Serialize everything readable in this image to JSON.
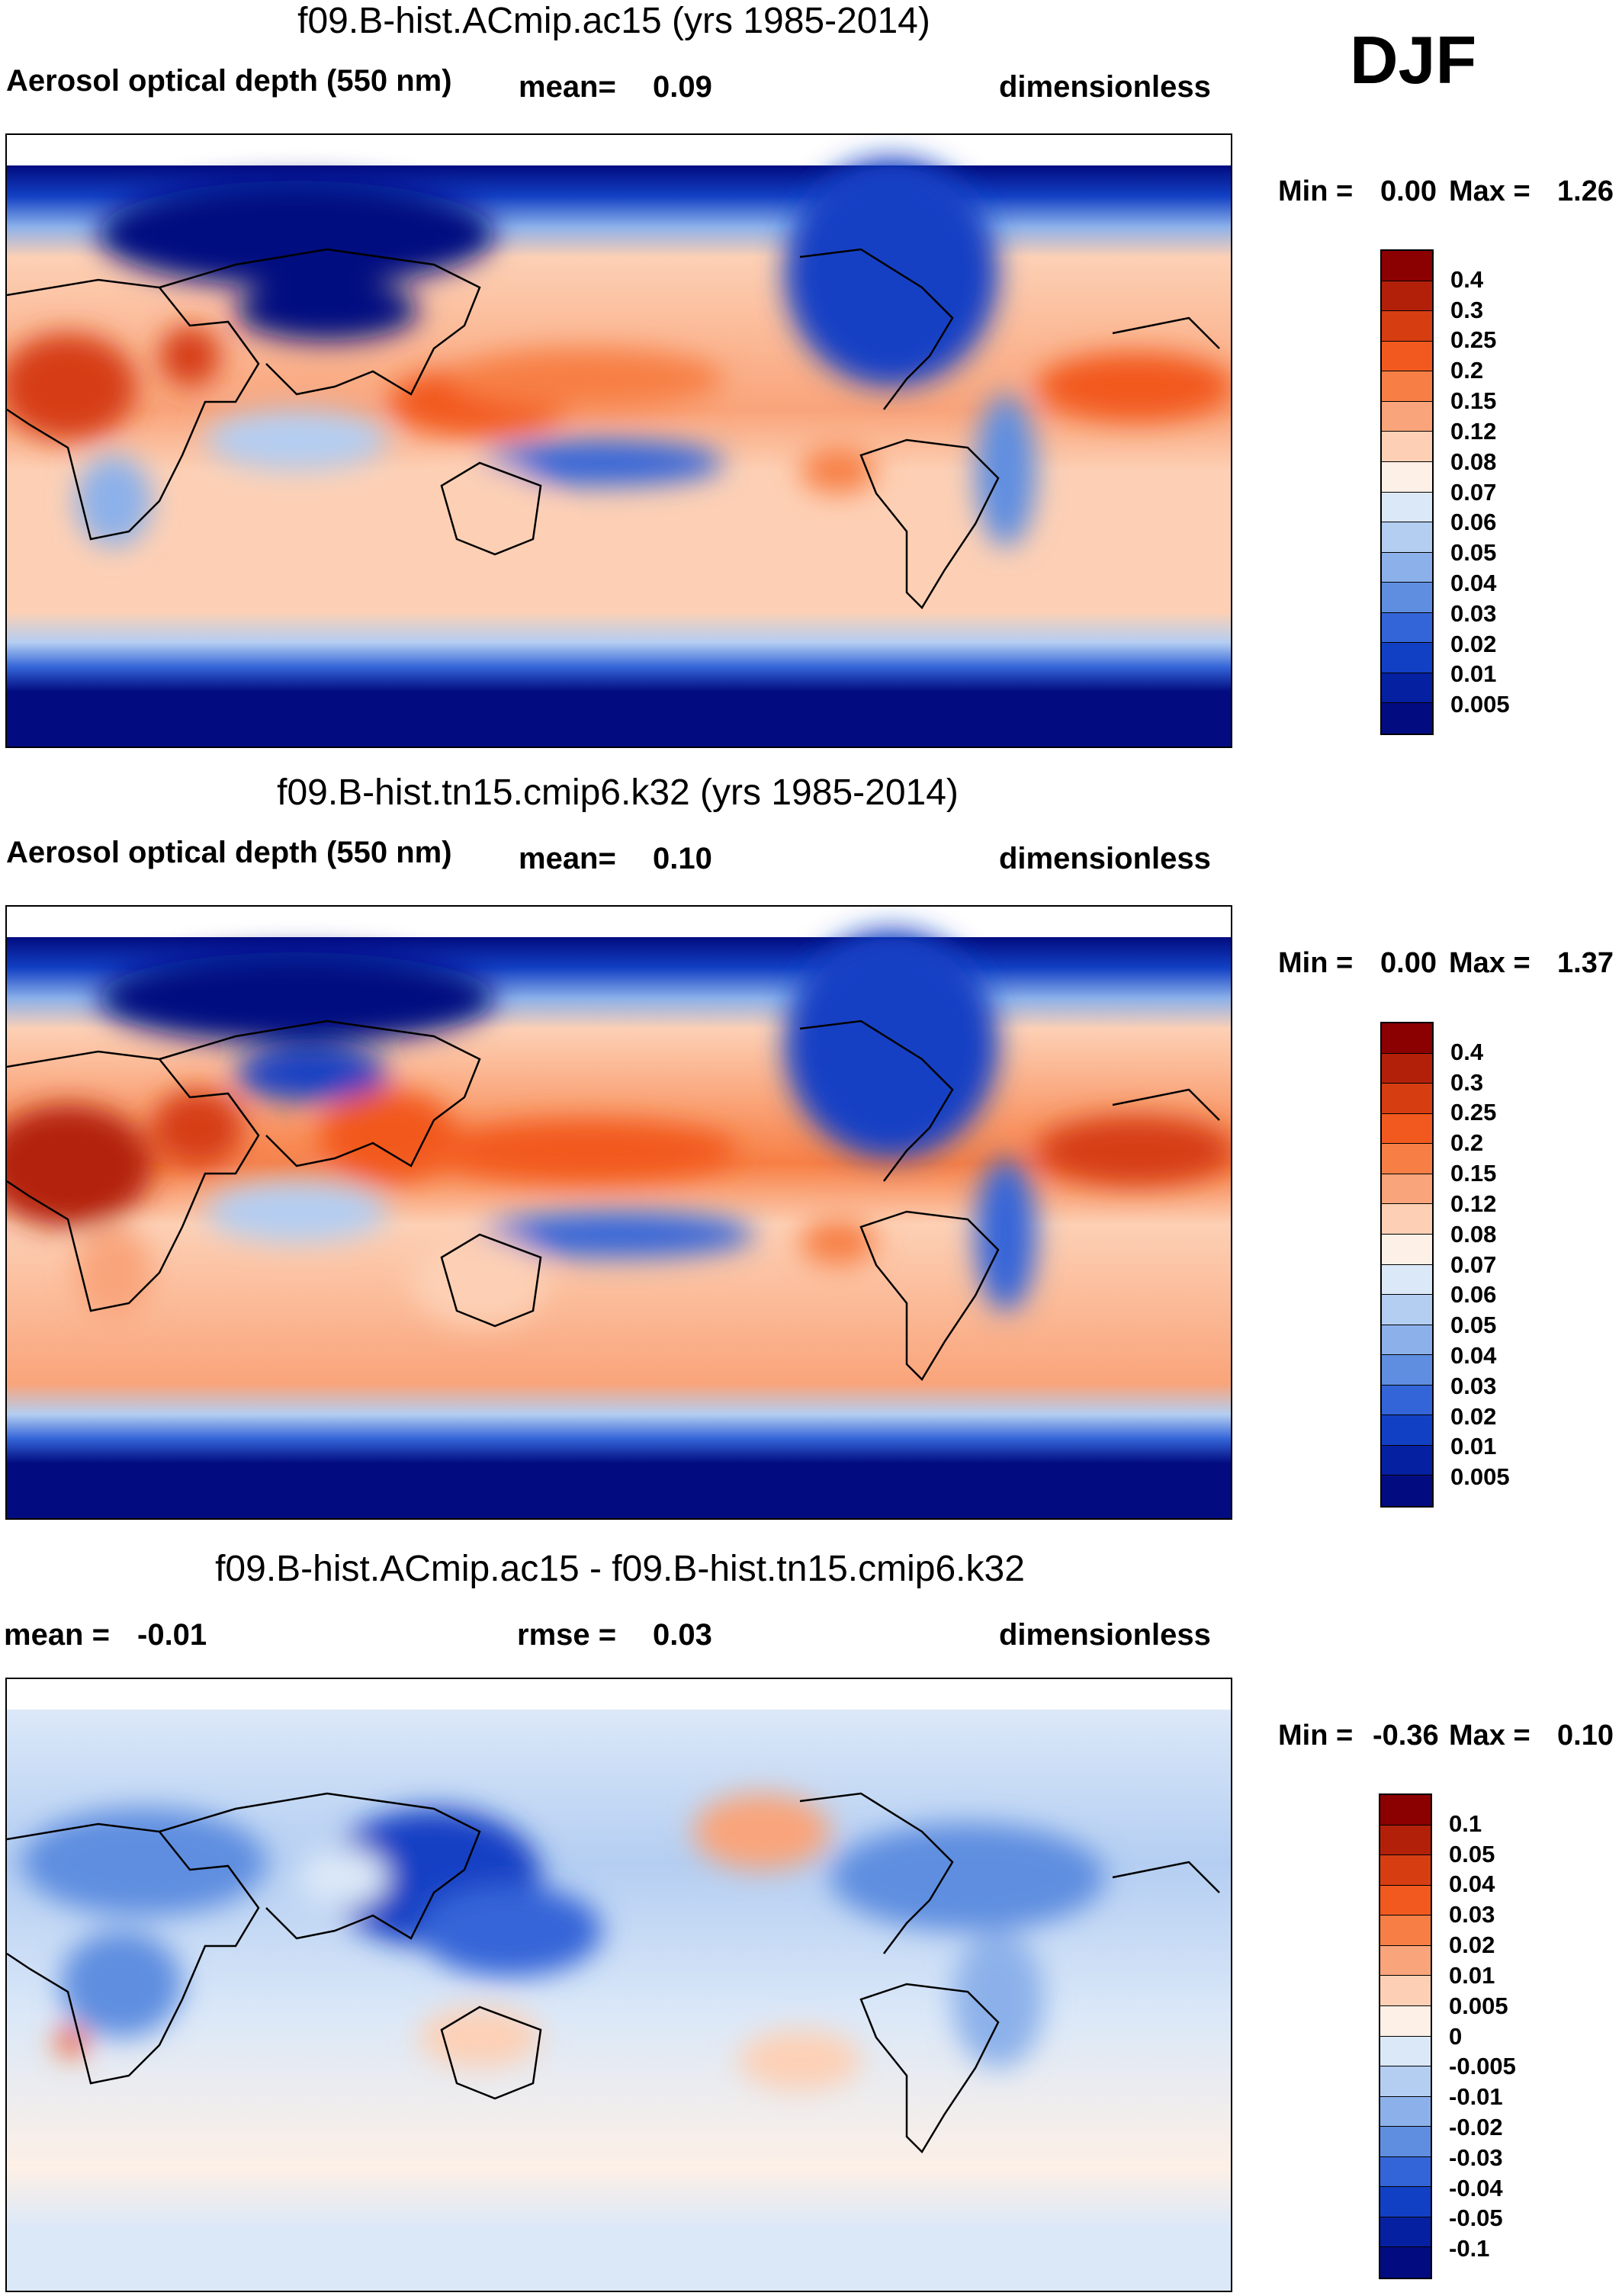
{
  "season": "DJF",
  "panels": [
    {
      "title": "f09.B-hist.ACmip.ac15 (yrs 1985-2014)",
      "left": "Aerosol optical depth (550 nm)",
      "stat_label": "mean=",
      "stat_value": "0.09",
      "units": "dimensionless",
      "min_label": "Min =",
      "min_value": "0.00",
      "max_label": "Max =",
      "max_value": "1.26",
      "colorbar": {
        "colors": [
          "#8b0000",
          "#b3200a",
          "#d63e12",
          "#f2591f",
          "#f77f45",
          "#f9a47a",
          "#fdd0b5",
          "#fdf0e6",
          "#dbe8f8",
          "#b4cef2",
          "#8cb1ea",
          "#5f8ee0",
          "#3465d8",
          "#1240c4",
          "#0520a0",
          "#020c80"
        ],
        "labels": [
          "0.4",
          "0.3",
          "0.25",
          "0.2",
          "0.15",
          "0.12",
          "0.08",
          "0.07",
          "0.06",
          "0.05",
          "0.04",
          "0.03",
          "0.02",
          "0.01",
          "0.005"
        ]
      }
    },
    {
      "title": "f09.B-hist.tn15.cmip6.k32 (yrs 1985-2014)",
      "left": "Aerosol optical depth (550 nm)",
      "stat_label": "mean=",
      "stat_value": "0.10",
      "units": "dimensionless",
      "min_label": "Min =",
      "min_value": "0.00",
      "max_label": "Max =",
      "max_value": "1.37",
      "colorbar": {
        "colors": [
          "#8b0000",
          "#b3200a",
          "#d63e12",
          "#f2591f",
          "#f77f45",
          "#f9a47a",
          "#fdd0b5",
          "#fdf0e6",
          "#dbe8f8",
          "#b4cef2",
          "#8cb1ea",
          "#5f8ee0",
          "#3465d8",
          "#1240c4",
          "#0520a0",
          "#020c80"
        ],
        "labels": [
          "0.4",
          "0.3",
          "0.25",
          "0.2",
          "0.15",
          "0.12",
          "0.08",
          "0.07",
          "0.06",
          "0.05",
          "0.04",
          "0.03",
          "0.02",
          "0.01",
          "0.005"
        ]
      }
    },
    {
      "title": "f09.B-hist.ACmip.ac15 - f09.B-hist.tn15.cmip6.k32",
      "left": "mean =",
      "left_value": "-0.01",
      "stat_label": "rmse =",
      "stat_value": "0.03",
      "units": "dimensionless",
      "min_label": "Min =",
      "min_value": "-0.36",
      "max_label": "Max =",
      "max_value": "0.10",
      "colorbar": {
        "colors": [
          "#8b0000",
          "#b3200a",
          "#d63e12",
          "#f2591f",
          "#f77f45",
          "#f9a47a",
          "#fdd0b5",
          "#fdf0e6",
          "#dbe8f8",
          "#b4cef2",
          "#8cb1ea",
          "#5f8ee0",
          "#3465d8",
          "#1240c4",
          "#0520a0",
          "#020c80"
        ],
        "labels": [
          "0.1",
          "0.05",
          "0.04",
          "0.03",
          "0.02",
          "0.01",
          "0.005",
          "0",
          "-0.005",
          "-0.01",
          "-0.02",
          "-0.03",
          "-0.04",
          "-0.05",
          "-0.1"
        ]
      }
    }
  ]
}
